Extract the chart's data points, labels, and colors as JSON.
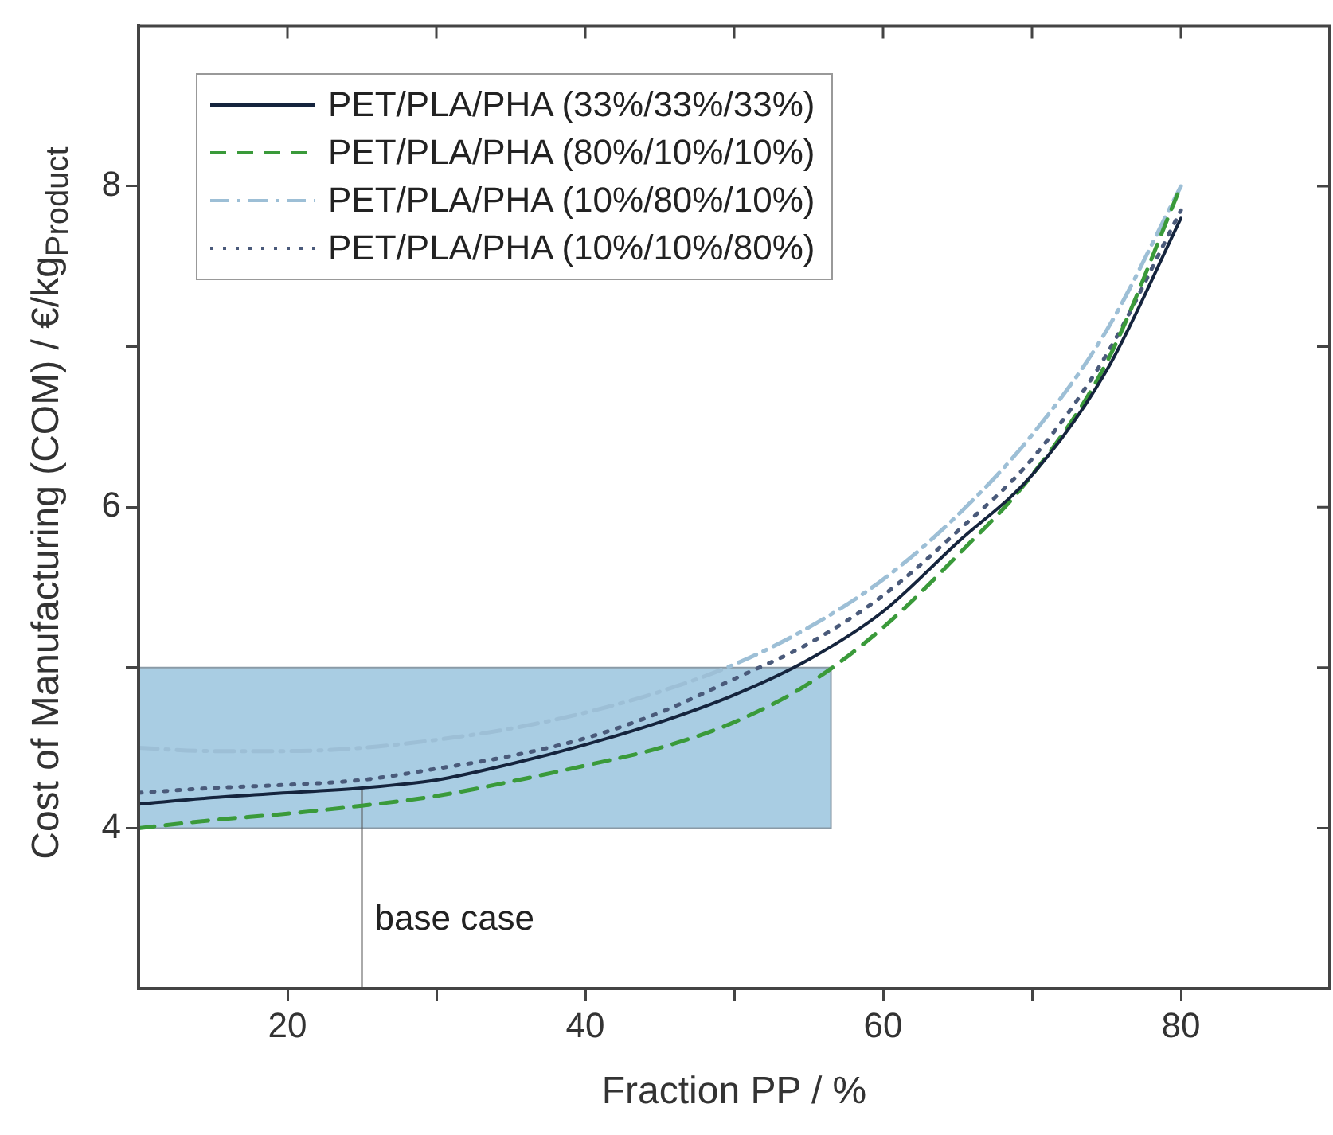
{
  "chart_data": {
    "type": "line",
    "xlabel": "Fraction PP / %",
    "ylabel": "Cost of Manufacturing (COM) /  €/kg$_{Product}$",
    "x": [
      10,
      15,
      20,
      25,
      30,
      35,
      40,
      45,
      50,
      55,
      60,
      65,
      70,
      75,
      80
    ],
    "series": [
      {
        "name": "PET/PLA/PHA (33%/33%/33%)",
        "color": "#15243d",
        "line_style": "solid",
        "values": [
          4.15,
          4.19,
          4.22,
          4.25,
          4.3,
          4.4,
          4.52,
          4.66,
          4.83,
          5.05,
          5.35,
          5.78,
          6.2,
          6.85,
          7.8
        ]
      },
      {
        "name": "PET/PLA/PHA (80%/10%/10%)",
        "color": "#3a9a3a",
        "line_style": "dashed",
        "values": [
          4.0,
          4.05,
          4.09,
          4.14,
          4.2,
          4.29,
          4.39,
          4.5,
          4.66,
          4.9,
          5.25,
          5.7,
          6.2,
          6.9,
          8.0
        ]
      },
      {
        "name": "PET/PLA/PHA (10%/80%/10%)",
        "color": "#9dbfd6",
        "line_style": "dashdot",
        "values": [
          4.5,
          4.48,
          4.48,
          4.5,
          4.55,
          4.62,
          4.72,
          4.85,
          5.02,
          5.25,
          5.55,
          5.95,
          6.45,
          7.1,
          8.0
        ]
      },
      {
        "name": "PET/PLA/PHA (10%/10%/80%)",
        "color": "#4a5a7a",
        "line_style": "dotted",
        "values": [
          4.22,
          4.25,
          4.27,
          4.3,
          4.37,
          4.45,
          4.56,
          4.72,
          4.93,
          5.15,
          5.45,
          5.85,
          6.3,
          6.95,
          7.85
        ]
      },
      {
        "color": "#a9cde3",
        "x": [
          10,
          56.5
        ],
        "values": [
          null,
          null
        ],
        "lower": [
          4,
          4
        ],
        "upper": [
          5,
          5
        ]
      }
    ],
    "xlim": [
      10,
      90
    ],
    "xticks": [
      20,
      {
        "value": 30,
        "label": null
      },
      40,
      {
        "value": 50,
        "label": null
      },
      60,
      {
        "value": 70,
        "label": null
      },
      80
    ],
    "ylim": [
      3,
      9
    ],
    "yticks": [
      4,
      {
        "value": 5,
        "label": null
      },
      6,
      {
        "value": 7,
        "label": null
      },
      8
    ],
    "ref_lines": [
      {
        "axis": "x",
        "value": 25,
        "label": "base case",
        "color": "#555555"
      }
    ],
    "grid": false,
    "legend": "top left"
  }
}
